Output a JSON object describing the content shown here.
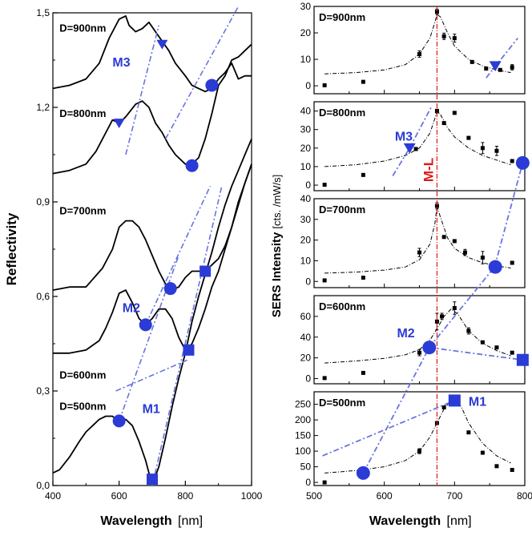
{
  "colors": {
    "curve": "#000000",
    "marker": "#2a3bd6",
    "guide": "#6a74e0",
    "ml_line": "#e01818",
    "ml_text": "#e01818",
    "fit": "#000000"
  },
  "chart_data": [
    {
      "type": "line",
      "title": "",
      "xlabel": "Wavelength",
      "xlabel_unit": "[nm]",
      "ylabel": "Reflectivity",
      "xlim": [
        400,
        1000
      ],
      "ylim": [
        0,
        1.5
      ],
      "xticks": [
        "400",
        "600",
        "800",
        "1000"
      ],
      "xticks_minor": [
        500,
        700,
        900
      ],
      "yticks": [
        "0,0",
        "0,3",
        "0,6",
        "0,9",
        "1,2",
        "1,5"
      ],
      "ytick_values": [
        0,
        0.3,
        0.6,
        0.9,
        1.2,
        1.5
      ],
      "series": [
        {
          "name": "D=900nm",
          "x": [
            400,
            450,
            500,
            540,
            570,
            600,
            620,
            630,
            650,
            670,
            690,
            710,
            730,
            750,
            770,
            800,
            820,
            840,
            860,
            880,
            900,
            920,
            940,
            960,
            980,
            1000
          ],
          "y": [
            1.26,
            1.27,
            1.29,
            1.34,
            1.42,
            1.48,
            1.49,
            1.46,
            1.44,
            1.45,
            1.47,
            1.44,
            1.41,
            1.38,
            1.34,
            1.3,
            1.27,
            1.26,
            1.25,
            1.26,
            1.29,
            1.31,
            1.34,
            1.29,
            1.3,
            1.3
          ]
        },
        {
          "name": "D=800nm",
          "x": [
            400,
            450,
            500,
            530,
            560,
            580,
            600,
            620,
            650,
            670,
            690,
            710,
            730,
            750,
            770,
            800,
            820,
            840,
            860,
            880,
            900,
            920,
            940,
            960,
            980,
            1000
          ],
          "y": [
            0.99,
            1.0,
            1.02,
            1.06,
            1.12,
            1.16,
            1.15,
            1.17,
            1.21,
            1.22,
            1.2,
            1.15,
            1.12,
            1.08,
            1.05,
            1.02,
            1.02,
            1.04,
            1.1,
            1.18,
            1.27,
            1.3,
            1.35,
            1.36,
            1.38,
            1.4
          ]
        },
        {
          "name": "D=700nm",
          "x": [
            400,
            450,
            500,
            550,
            580,
            600,
            620,
            640,
            660,
            680,
            700,
            720,
            740,
            760,
            780,
            800,
            820,
            840,
            860,
            880,
            900,
            920,
            940,
            960,
            980,
            1000
          ],
          "y": [
            0.62,
            0.63,
            0.63,
            0.69,
            0.75,
            0.82,
            0.84,
            0.84,
            0.82,
            0.78,
            0.73,
            0.68,
            0.64,
            0.62,
            0.63,
            0.66,
            0.68,
            0.68,
            0.68,
            0.7,
            0.72,
            0.76,
            0.82,
            0.9,
            0.96,
            1.02
          ]
        },
        {
          "name": "D=600nm",
          "x": [
            400,
            450,
            500,
            540,
            560,
            580,
            600,
            620,
            640,
            660,
            680,
            700,
            720,
            740,
            760,
            780,
            800,
            820,
            840,
            860,
            880,
            900,
            920,
            940,
            960,
            980,
            1000
          ],
          "y": [
            0.42,
            0.42,
            0.43,
            0.46,
            0.5,
            0.55,
            0.61,
            0.62,
            0.58,
            0.53,
            0.51,
            0.53,
            0.56,
            0.56,
            0.53,
            0.47,
            0.43,
            0.45,
            0.5,
            0.56,
            0.63,
            0.68,
            0.75,
            0.82,
            0.89,
            0.96,
            1.02
          ]
        },
        {
          "name": "D=500nm",
          "x": [
            400,
            420,
            450,
            480,
            500,
            520,
            540,
            560,
            580,
            600,
            620,
            640,
            660,
            680,
            690,
            700,
            710,
            720,
            740,
            760,
            780,
            800,
            820,
            840,
            860,
            880,
            900,
            920,
            940,
            960,
            980,
            1000
          ],
          "y": [
            0.04,
            0.05,
            0.09,
            0.14,
            0.17,
            0.19,
            0.21,
            0.22,
            0.22,
            0.2,
            0.21,
            0.19,
            0.14,
            0.08,
            0.04,
            0.02,
            0.03,
            0.06,
            0.15,
            0.25,
            0.34,
            0.42,
            0.52,
            0.6,
            0.67,
            0.74,
            0.82,
            0.89,
            0.95,
            1.0,
            1.05,
            1.1
          ]
        }
      ],
      "markers": [
        {
          "shape": "circle",
          "x": 600,
          "y": 0.205
        },
        {
          "shape": "square",
          "x": 700,
          "y": 0.02
        },
        {
          "shape": "circle",
          "x": 680,
          "y": 0.51
        },
        {
          "shape": "square",
          "x": 810,
          "y": 0.43
        },
        {
          "shape": "circle",
          "x": 755,
          "y": 0.625
        },
        {
          "shape": "square",
          "x": 860,
          "y": 0.68
        },
        {
          "shape": "triangle",
          "x": 600,
          "y": 1.15
        },
        {
          "shape": "circle",
          "x": 820,
          "y": 1.015
        },
        {
          "shape": "triangle",
          "x": 730,
          "y": 1.4
        },
        {
          "shape": "circle",
          "x": 880,
          "y": 1.27
        }
      ],
      "guides": [
        {
          "name": "M1",
          "x": [
            590,
            810
          ],
          "y": [
            0.3,
            0.4
          ]
        },
        {
          "name": "M1",
          "x": [
            700,
            910
          ],
          "y": [
            0.0,
            0.95
          ]
        },
        {
          "name": "M2",
          "x": [
            600,
            780
          ],
          "y": [
            0.205,
            0.73
          ]
        },
        {
          "name": "M2",
          "x": [
            680,
            875
          ],
          "y": [
            0.51,
            0.95
          ]
        },
        {
          "name": "M3",
          "x": [
            620,
            720
          ],
          "y": [
            1.05,
            1.46
          ]
        },
        {
          "name": "M3",
          "x": [
            740,
            960
          ],
          "y": [
            1.1,
            1.52
          ]
        }
      ],
      "annotations": [
        {
          "text": "D=900nm",
          "x": 420,
          "y": 1.44
        },
        {
          "text": "D=800nm",
          "x": 420,
          "y": 1.17
        },
        {
          "text": "D=700nm",
          "x": 420,
          "y": 0.86
        },
        {
          "text": "D=600nm",
          "x": 420,
          "y": 0.34
        },
        {
          "text": "D=500nm",
          "x": 420,
          "y": 0.24
        },
        {
          "text": "M3",
          "x": 580,
          "y": 1.33
        },
        {
          "text": "M2",
          "x": 610,
          "y": 0.55
        },
        {
          "text": "M1",
          "x": 670,
          "y": 0.23
        }
      ]
    },
    {
      "type": "scatter",
      "title": "",
      "xlabel": "Wavelength",
      "xlabel_unit": "[nm]",
      "ylabel": "SERS Intensity",
      "ylabel_unit": "[cts. /mW/s]",
      "xlim": [
        500,
        800
      ],
      "xticks": [
        "500",
        "600",
        "700",
        "800"
      ],
      "ml_line_x": 675,
      "ml_label": "M-L",
      "panels": [
        {
          "name": "D=900nm",
          "ylim": [
            -3,
            30
          ],
          "yticks": [
            0,
            10,
            20,
            30
          ],
          "x": [
            515,
            570,
            650,
            675,
            685,
            700,
            725,
            745,
            765,
            782
          ],
          "y": [
            0.2,
            1.5,
            12,
            28,
            18.7,
            18,
            9,
            6.5,
            6,
            7
          ],
          "err": [
            0,
            0,
            1.2,
            1,
            1.2,
            1.5,
            0,
            0,
            0,
            1
          ],
          "fit_x": [
            515,
            560,
            600,
            630,
            650,
            665,
            672,
            675,
            680,
            690,
            700,
            720,
            740,
            760,
            780
          ],
          "fit_y": [
            4.5,
            5,
            6,
            8,
            12,
            18,
            24,
            27,
            26,
            20,
            15,
            10,
            7.5,
            6,
            5
          ]
        },
        {
          "name": "D=800nm",
          "ylim": [
            -3,
            45
          ],
          "yticks": [
            0,
            10,
            20,
            30,
            40
          ],
          "x": [
            515,
            570,
            645,
            675,
            685,
            700,
            720,
            740,
            760,
            782
          ],
          "y": [
            0.2,
            5.5,
            19.5,
            40,
            33.5,
            39,
            25.5,
            20,
            18.5,
            13
          ],
          "err": [
            0,
            0,
            0,
            1,
            0,
            0,
            0,
            3,
            2.5,
            0
          ],
          "fit_x": [
            515,
            560,
            600,
            630,
            650,
            665,
            672,
            675,
            680,
            690,
            700,
            720,
            740,
            760,
            780
          ],
          "fit_y": [
            10,
            11,
            13,
            16,
            20,
            28,
            36,
            40,
            38,
            31,
            26,
            20,
            16,
            13.5,
            11
          ],
          "marker_shape": "triangle",
          "marker_x": 636,
          "marker_y": 20
        },
        {
          "name": "D=700nm",
          "ylim": [
            -3,
            40
          ],
          "yticks": [
            0,
            10,
            20,
            30,
            40
          ],
          "x": [
            515,
            570,
            650,
            675,
            685,
            700,
            715,
            740,
            760,
            782
          ],
          "y": [
            0.5,
            1.8,
            14,
            36.5,
            21.5,
            19.5,
            14,
            11.5,
            9,
            9
          ],
          "err": [
            0,
            0,
            2,
            1.5,
            0,
            0,
            1.5,
            3,
            0,
            0
          ],
          "fit_x": [
            515,
            560,
            600,
            630,
            650,
            665,
            672,
            675,
            680,
            690,
            700,
            720,
            740,
            760,
            780
          ],
          "fit_y": [
            4,
            4.5,
            5.5,
            7,
            10.5,
            18,
            28,
            36,
            31,
            21,
            16,
            11.5,
            9,
            7.5,
            6.5
          ]
        },
        {
          "name": "D=600nm",
          "ylim": [
            -5,
            80
          ],
          "yticks": [
            0,
            20,
            40,
            60
          ],
          "x": [
            515,
            570,
            650,
            675,
            682,
            700,
            720,
            740,
            760,
            782
          ],
          "y": [
            0.5,
            5.5,
            25,
            55,
            60,
            68,
            46,
            35,
            30,
            25
          ],
          "err": [
            0,
            0,
            3,
            8,
            3,
            6,
            3,
            0,
            0,
            0
          ],
          "fit_x": [
            515,
            560,
            600,
            630,
            650,
            665,
            675,
            685,
            695,
            705,
            720,
            740,
            760,
            780
          ],
          "fit_y": [
            15,
            17,
            19.5,
            23,
            28,
            37,
            48,
            60,
            67,
            62,
            46,
            34,
            27,
            22
          ]
        },
        {
          "name": "D=500nm",
          "ylim": [
            -10,
            290
          ],
          "yticks": [
            0,
            50,
            100,
            150,
            200,
            250
          ],
          "x": [
            515,
            570,
            650,
            675,
            685,
            700,
            720,
            740,
            760,
            782
          ],
          "y": [
            0,
            25,
            100,
            190,
            240,
            262,
            160,
            95,
            52,
            40
          ],
          "err": [
            0,
            0,
            8,
            0,
            0,
            0,
            0,
            0,
            0,
            0
          ],
          "fit_x": [
            515,
            560,
            600,
            630,
            650,
            665,
            675,
            685,
            695,
            702,
            710,
            720,
            740,
            760,
            780
          ],
          "fit_y": [
            30,
            38,
            50,
            70,
            100,
            145,
            190,
            235,
            262,
            265,
            240,
            190,
            125,
            85,
            62
          ]
        }
      ],
      "markers": [
        {
          "shape": "circle",
          "x": 570,
          "panel": 4,
          "y": 30
        },
        {
          "shape": "square",
          "x": 700,
          "panel": 4,
          "y": 262
        },
        {
          "shape": "circle",
          "x": 664,
          "panel": 3,
          "y": 30
        },
        {
          "shape": "square",
          "x": 797,
          "panel": 3,
          "y": 18
        },
        {
          "shape": "circle",
          "x": 758,
          "panel": 2,
          "y": 7
        },
        {
          "shape": "triangle",
          "x": 636,
          "panel": 1,
          "y": 20
        },
        {
          "shape": "circle",
          "x": 797,
          "panel": 1,
          "y": 12
        },
        {
          "shape": "triangle",
          "x": 758,
          "panel": 0,
          "y": 7.5
        }
      ],
      "guides": [
        {
          "name": "M1",
          "x_from": 512,
          "panel_from": 4,
          "y_from": 85,
          "x_to": 700,
          "panel_to": 4,
          "y_to": 262
        },
        {
          "name": "M2",
          "x_from": 570,
          "panel_from": 4,
          "y_from": 30,
          "x_to": 664,
          "panel_to": 3,
          "y_to": 30
        },
        {
          "name": "M2",
          "x_from": 664,
          "panel_from": 3,
          "y_from": 30,
          "x_to": 797,
          "panel_to": 3,
          "y_to": 18
        },
        {
          "name": "M2",
          "x_from": 664,
          "panel_from": 3,
          "y_from": 30,
          "x_to": 757,
          "panel_to": 2,
          "y_to": 7
        },
        {
          "name": "M2",
          "x_from": 757,
          "panel_from": 2,
          "y_from": 7,
          "x_to": 797,
          "panel_to": 1,
          "y_to": 12
        },
        {
          "name": "M3",
          "x_from": 612,
          "panel_from": 1,
          "y_from": 5,
          "x_to": 636,
          "panel_to": 1,
          "y_to": 20
        },
        {
          "name": "M3",
          "x_from": 636,
          "panel_from": 1,
          "y_from": 20,
          "x_to": 668,
          "panel_to": 1,
          "y_to": 43
        },
        {
          "name": "M3",
          "x_from": 745,
          "panel_from": 0,
          "y_from": 3,
          "x_to": 790,
          "panel_to": 0,
          "y_to": 18
        }
      ],
      "labels": [
        {
          "text": "M3",
          "panel": 1,
          "x": 615,
          "y": 24
        },
        {
          "text": "M2",
          "panel": 3,
          "x": 618,
          "y": 40
        },
        {
          "text": "M1",
          "panel": 4,
          "x": 720,
          "y": 245
        }
      ]
    }
  ]
}
